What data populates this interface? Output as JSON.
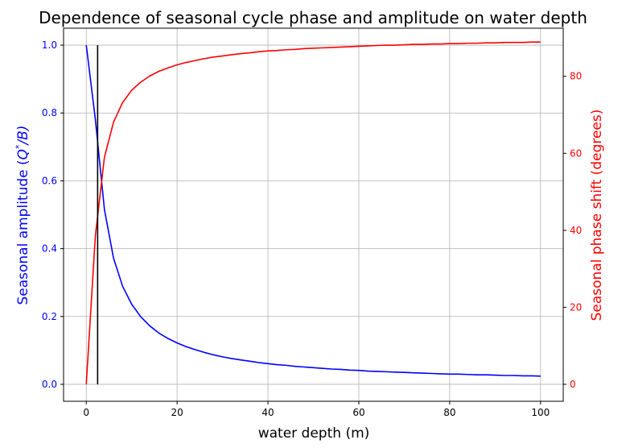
{
  "chart_data": {
    "type": "line",
    "title": "Dependence of seasonal cycle phase and amplitude on water depth",
    "xlabel": "water depth (m)",
    "ylabel_left": "Seasonal amplitude (Q*/B)",
    "ylabel_left_parts": {
      "prefix": "Seasonal amplitude (",
      "q": "Q",
      "star": "*",
      "suffix": "/B)"
    },
    "ylabel_right": "Seasonal phase shift (degrees)",
    "xlim": [
      -5,
      105
    ],
    "ylim_left": [
      -0.05,
      1.05
    ],
    "ylim_right": [
      -4.4,
      92.5
    ],
    "x_ticks": [
      0,
      20,
      40,
      60,
      80,
      100
    ],
    "x_tick_labels": [
      "0",
      "20",
      "40",
      "60",
      "80",
      "100"
    ],
    "y_left_ticks": [
      0.0,
      0.2,
      0.4,
      0.6,
      0.8,
      1.0
    ],
    "y_left_tick_labels": [
      "0.0",
      "0.2",
      "0.4",
      "0.6",
      "0.8",
      "1.0"
    ],
    "y_right_ticks": [
      0,
      20,
      40,
      60,
      80
    ],
    "y_right_tick_labels": [
      "0",
      "20",
      "40",
      "60",
      "80"
    ],
    "grid": true,
    "colors": {
      "amplitude": "#0000ff",
      "phase": "#ff0000",
      "marker_line": "#000000",
      "grid": "#b0b0b0"
    },
    "vertical_line": {
      "x": 2.5,
      "y_range": [
        0,
        1
      ]
    },
    "series": [
      {
        "name": "Seasonal amplitude",
        "axis": "left",
        "x": [
          0,
          2,
          4,
          6,
          8,
          10,
          12,
          14,
          16,
          18,
          20,
          22,
          24,
          26,
          28,
          30,
          32,
          34,
          36,
          38,
          40,
          42,
          44,
          46,
          48,
          50,
          52,
          54,
          56,
          58,
          60,
          62,
          64,
          66,
          68,
          70,
          72,
          74,
          76,
          78,
          80,
          82,
          84,
          86,
          88,
          90,
          92,
          94,
          96,
          98,
          100
        ],
        "values": [
          1.0,
          0.781,
          0.515,
          0.372,
          0.289,
          0.236,
          0.199,
          0.172,
          0.151,
          0.135,
          0.122,
          0.111,
          0.102,
          0.094,
          0.087,
          0.081,
          0.076,
          0.072,
          0.068,
          0.064,
          0.061,
          0.058,
          0.056,
          0.053,
          0.051,
          0.049,
          0.047,
          0.045,
          0.044,
          0.042,
          0.041,
          0.039,
          0.038,
          0.037,
          0.036,
          0.035,
          0.034,
          0.033,
          0.032,
          0.031,
          0.03,
          0.03,
          0.029,
          0.028,
          0.028,
          0.027,
          0.026,
          0.026,
          0.025,
          0.025,
          0.024
        ]
      },
      {
        "name": "Seasonal phase shift",
        "axis": "right",
        "x": [
          0,
          2,
          4,
          6,
          8,
          10,
          12,
          14,
          16,
          18,
          20,
          22,
          24,
          26,
          28,
          30,
          32,
          34,
          36,
          38,
          40,
          42,
          44,
          46,
          48,
          50,
          52,
          54,
          56,
          58,
          60,
          62,
          64,
          66,
          68,
          70,
          72,
          74,
          76,
          78,
          80,
          82,
          84,
          86,
          88,
          90,
          92,
          94,
          96,
          98,
          100
        ],
        "values": [
          0.0,
          38.6,
          59.0,
          68.1,
          73.2,
          76.4,
          78.5,
          80.1,
          81.3,
          82.2,
          83.0,
          83.6,
          84.1,
          84.6,
          85.0,
          85.3,
          85.6,
          85.9,
          86.1,
          86.4,
          86.6,
          86.7,
          86.9,
          87.0,
          87.2,
          87.3,
          87.4,
          87.5,
          87.6,
          87.7,
          87.8,
          87.9,
          88.0,
          88.1,
          88.1,
          88.2,
          88.3,
          88.3,
          88.4,
          88.4,
          88.5,
          88.5,
          88.6,
          88.6,
          88.7,
          88.7,
          88.8,
          88.8,
          88.8,
          88.9,
          88.9
        ]
      }
    ]
  }
}
